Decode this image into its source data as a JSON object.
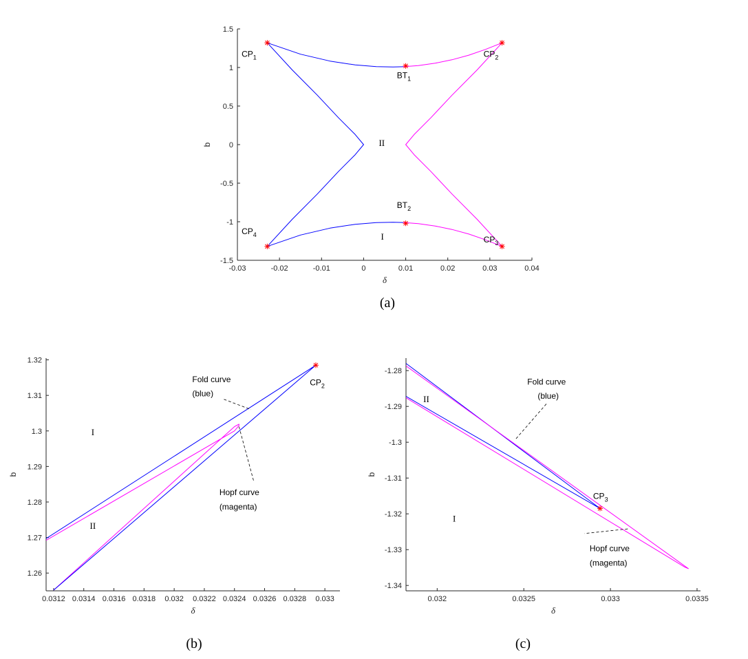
{
  "colors": {
    "fold": "#0000ff",
    "hopf": "#ff00ff",
    "marker": "#ff0000",
    "axis": "#262626"
  },
  "chart_data": [
    {
      "type": "line",
      "caption": "(a)",
      "xlabel": "δ",
      "ylabel": "b",
      "xlim": [
        -0.03,
        0.04
      ],
      "ylim": [
        -1.5,
        1.5
      ],
      "xticks": [
        -0.03,
        -0.02,
        -0.01,
        0,
        0.01,
        0.02,
        0.03,
        0.04
      ],
      "xtick_labels": [
        "-0.03",
        "-0.02",
        "-0.01",
        "0",
        "0.01",
        "0.02",
        "0.03",
        "0.04"
      ],
      "yticks": [
        -1.5,
        -1,
        -0.5,
        0,
        0.5,
        1,
        1.5
      ],
      "ytick_labels": [
        "-1.5",
        "-1",
        "-0.5",
        "0",
        "0.5",
        "1",
        "1.5"
      ],
      "grid": false,
      "series": [
        {
          "color": "fold",
          "x": [
            -0.0229,
            -0.017,
            -0.011,
            -0.006,
            -0.002,
            0.0,
            -0.002,
            -0.006,
            -0.011,
            -0.017,
            -0.0229
          ],
          "y": [
            1.32,
            0.97,
            0.64,
            0.35,
            0.13,
            0.0,
            -0.13,
            -0.35,
            -0.64,
            -0.97,
            -1.32
          ]
        },
        {
          "color": "fold",
          "x": [
            -0.0229,
            -0.015,
            -0.008,
            -0.002,
            0.003,
            0.007,
            0.0094
          ],
          "y": [
            1.32,
            1.172,
            1.083,
            1.033,
            1.012,
            1.007,
            1.01
          ]
        },
        {
          "color": "fold",
          "x": [
            -0.0229,
            -0.015,
            -0.008,
            -0.002,
            0.003,
            0.007,
            0.0094
          ],
          "y": [
            -1.32,
            -1.172,
            -1.083,
            -1.033,
            -1.012,
            -1.007,
            -1.01
          ]
        },
        {
          "color": "hopf",
          "x": [
            0.0329,
            0.027,
            0.021,
            0.016,
            0.012,
            0.01,
            0.012,
            0.016,
            0.021,
            0.027,
            0.0329
          ],
          "y": [
            1.32,
            0.97,
            0.64,
            0.35,
            0.13,
            0.0,
            -0.13,
            -0.35,
            -0.64,
            -0.97,
            -1.32
          ]
        },
        {
          "color": "hopf",
          "x": [
            0.0094,
            0.013,
            0.017,
            0.021,
            0.025,
            0.029,
            0.0329
          ],
          "y": [
            1.01,
            1.025,
            1.055,
            1.1,
            1.16,
            1.235,
            1.32
          ]
        },
        {
          "color": "hopf",
          "x": [
            0.0094,
            0.013,
            0.017,
            0.021,
            0.025,
            0.029,
            0.0329
          ],
          "y": [
            -1.01,
            -1.025,
            -1.055,
            -1.1,
            -1.16,
            -1.235,
            -1.32
          ]
        }
      ],
      "markers": [
        {
          "x": -0.0229,
          "y": 1.32
        },
        {
          "x": 0.0329,
          "y": 1.32
        },
        {
          "x": 0.0329,
          "y": -1.32
        },
        {
          "x": -0.0229,
          "y": -1.32
        },
        {
          "x": 0.01,
          "y": 1.02
        },
        {
          "x": 0.01,
          "y": -1.02
        }
      ],
      "labels": [
        {
          "text": "CP",
          "sub": "1",
          "x": -0.029,
          "y": 1.14,
          "kind": "ann"
        },
        {
          "text": "CP",
          "sub": "2",
          "x": 0.0285,
          "y": 1.14,
          "kind": "ann"
        },
        {
          "text": "CP",
          "sub": "3",
          "x": 0.0285,
          "y": -1.27,
          "kind": "ann"
        },
        {
          "text": "CP",
          "sub": "4",
          "x": -0.029,
          "y": -1.16,
          "kind": "ann"
        },
        {
          "text": "BT",
          "sub": "1",
          "x": 0.0079,
          "y": 0.86,
          "kind": "ann"
        },
        {
          "text": "BT",
          "sub": "2",
          "x": 0.0079,
          "y": -0.82,
          "kind": "ann"
        },
        {
          "text": "II",
          "sub": "",
          "x": 0.0036,
          "y": -0.02,
          "kind": "region"
        },
        {
          "text": "I",
          "sub": "",
          "x": 0.0041,
          "y": -1.23,
          "kind": "region"
        }
      ],
      "leaders": []
    },
    {
      "type": "line",
      "caption": "(b)",
      "xlabel": "δ",
      "ylabel": "b",
      "xlim": [
        0.03115,
        0.0331
      ],
      "ylim": [
        1.255,
        1.3205
      ],
      "xticks": [
        0.0312,
        0.0314,
        0.0316,
        0.0318,
        0.032,
        0.0322,
        0.0324,
        0.0326,
        0.0328,
        0.033
      ],
      "xtick_labels": [
        "0.0312",
        "0.0314",
        "0.0316",
        "0.0318",
        "0.032",
        "0.0322",
        "0.0324",
        "0.0326",
        "0.0328",
        "0.033"
      ],
      "yticks": [
        1.26,
        1.27,
        1.28,
        1.29,
        1.3,
        1.31,
        1.32
      ],
      "ytick_labels": [
        "1.26",
        "1.27",
        "1.28",
        "1.29",
        "1.3",
        "1.31",
        "1.32"
      ],
      "grid": false,
      "series": [
        {
          "color": "hopf",
          "x": [
            0.03115,
            0.0324,
            0.03243,
            0.03243,
            0.0324,
            0.0312
          ],
          "y": [
            1.2692,
            1.3,
            1.3015,
            1.3019,
            1.3012,
            1.2552
          ]
        },
        {
          "color": "fold",
          "x": [
            0.03115,
            0.03294,
            0.0312
          ],
          "y": [
            1.2697,
            1.3185,
            1.2552
          ]
        }
      ],
      "markers": [
        {
          "x": 0.03294,
          "y": 1.3185
        }
      ],
      "labels": [
        {
          "text": "CP",
          "sub": "2",
          "x": 0.0329,
          "y": 1.3128,
          "kind": "ann"
        },
        {
          "text": "Fold curve",
          "sub": "",
          "x": 0.03212,
          "y": 1.3137,
          "kind": "ann"
        },
        {
          "text": "(blue)",
          "sub": "",
          "x": 0.03212,
          "y": 1.3097,
          "kind": "ann"
        },
        {
          "text": "Hopf curve",
          "sub": "",
          "x": 0.0323,
          "y": 1.2819,
          "kind": "ann"
        },
        {
          "text": "(magenta)",
          "sub": "",
          "x": 0.0323,
          "y": 1.2779,
          "kind": "ann"
        },
        {
          "text": "I",
          "sub": "",
          "x": 0.03145,
          "y": 1.2988,
          "kind": "region"
        },
        {
          "text": "II",
          "sub": "",
          "x": 0.03144,
          "y": 1.2724,
          "kind": "region"
        }
      ],
      "leaders": [
        {
          "x1": 0.03233,
          "y1": 1.3089,
          "x2": 0.03251,
          "y2": 1.306
        },
        {
          "x1": 0.03243,
          "y1": 1.3012,
          "x2": 0.03253,
          "y2": 1.2855
        }
      ]
    },
    {
      "type": "line",
      "caption": "(c)",
      "xlabel": "δ",
      "ylabel": "b",
      "xlim": [
        0.03182,
        0.03352
      ],
      "ylim": [
        -1.3415,
        -1.2765
      ],
      "xticks": [
        0.032,
        0.0325,
        0.033,
        0.0335
      ],
      "xtick_labels": [
        "0.032",
        "0.0325",
        "0.033",
        "0.0335"
      ],
      "yticks": [
        -1.34,
        -1.33,
        -1.32,
        -1.31,
        -1.3,
        -1.29,
        -1.28
      ],
      "ytick_labels": [
        "-1.34",
        "-1.33",
        "-1.32",
        "-1.31",
        "-1.3",
        "-1.29",
        "-1.28"
      ],
      "grid": false,
      "series": [
        {
          "color": "fold",
          "x": [
            0.03182,
            0.03294,
            0.03182
          ],
          "y": [
            -1.278,
            -1.3185,
            -1.2872
          ]
        },
        {
          "color": "hopf",
          "x": [
            0.03182,
            0.03345,
            0.03343,
            0.03182
          ],
          "y": [
            -1.2787,
            -1.3353,
            -1.3349,
            -1.2876
          ]
        }
      ],
      "markers": [
        {
          "x": 0.03294,
          "y": -1.3185
        }
      ],
      "labels": [
        {
          "text": "CP",
          "sub": "3",
          "x": 0.0329,
          "y": -1.3158,
          "kind": "ann"
        },
        {
          "text": "Fold curve",
          "sub": "",
          "x": 0.03252,
          "y": -1.2839,
          "kind": "ann"
        },
        {
          "text": "(blue)",
          "sub": "",
          "x": 0.03258,
          "y": -1.2878,
          "kind": "ann"
        },
        {
          "text": "Hopf curve",
          "sub": "",
          "x": 0.03288,
          "y": -1.3304,
          "kind": "ann"
        },
        {
          "text": "(magenta)",
          "sub": "",
          "x": 0.03288,
          "y": -1.3345,
          "kind": "ann"
        },
        {
          "text": "II",
          "sub": "",
          "x": 0.03192,
          "y": -1.2888,
          "kind": "region"
        },
        {
          "text": "I",
          "sub": "",
          "x": 0.03209,
          "y": -1.3222,
          "kind": "region"
        }
      ],
      "leaders": [
        {
          "x1": 0.03263,
          "y1": -1.2893,
          "x2": 0.03245,
          "y2": -1.2993
        },
        {
          "x1": 0.0331,
          "y1": -1.3242,
          "x2": 0.03285,
          "y2": -1.3255
        }
      ]
    }
  ]
}
